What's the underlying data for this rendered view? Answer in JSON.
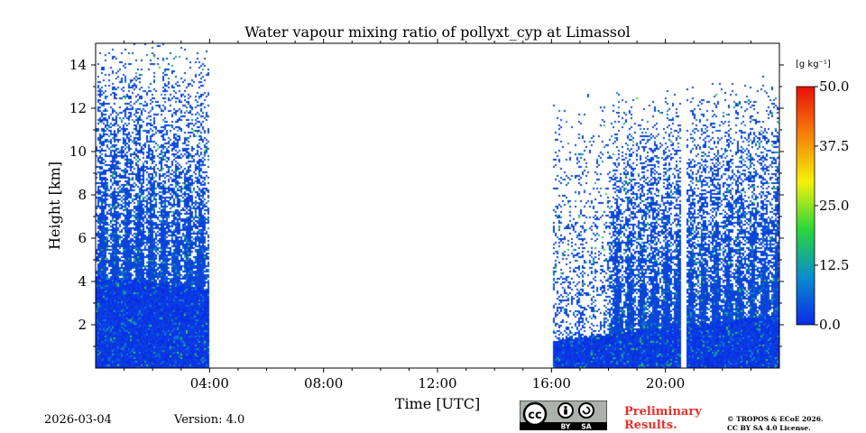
{
  "chart_data": {
    "type": "heatmap",
    "title": "Water vapour mixing ratio of pollyxt_cyp at Limassol",
    "xlabel": "Time [UTC]",
    "ylabel": "Height [km]",
    "xlim": [
      0,
      24
    ],
    "ylim": [
      0,
      15
    ],
    "x_ticks": [
      4,
      8,
      12,
      16,
      20
    ],
    "x_tick_labels": [
      "04:00",
      "08:00",
      "12:00",
      "16:00",
      "20:00"
    ],
    "y_ticks": [
      2,
      4,
      6,
      8,
      10,
      12,
      14
    ],
    "y_tick_labels": [
      "2",
      "4",
      "6",
      "8",
      "10",
      "12",
      "14"
    ],
    "data_segments": [
      {
        "start_hour": 0,
        "end_hour": 4
      },
      {
        "start_hour": 16,
        "end_hour": 24
      }
    ],
    "no_data_gaps": [
      {
        "start_hour": 4,
        "end_hour": 16
      },
      {
        "start_hour": 20.5,
        "end_hour": 20.7
      }
    ],
    "colorbar": {
      "unit_label": "[g kg⁻¹]",
      "min": 0,
      "max": 50,
      "ticks": [
        0,
        12.5,
        25,
        37.5,
        50
      ],
      "tick_labels": [
        "0.0",
        "12.5",
        "25.0",
        "37.5",
        "50.0"
      ],
      "colors": [
        "#0a2be6",
        "#0a8ccd",
        "#2bd63c",
        "#f5f00a",
        "#f5800a",
        "#e8100a"
      ]
    }
  },
  "footer": {
    "date": "2026-03-04",
    "version": "Version: 4.0",
    "cc_label_cc": "cc",
    "cc_label_by": "BY",
    "cc_label_sa": "SA",
    "preliminary_line1": "Preliminary",
    "preliminary_line2": "Results.",
    "copyright_line1": "© TROPOS & ECoE 2026.",
    "copyright_line2": "CC BY SA 4.0 License."
  }
}
